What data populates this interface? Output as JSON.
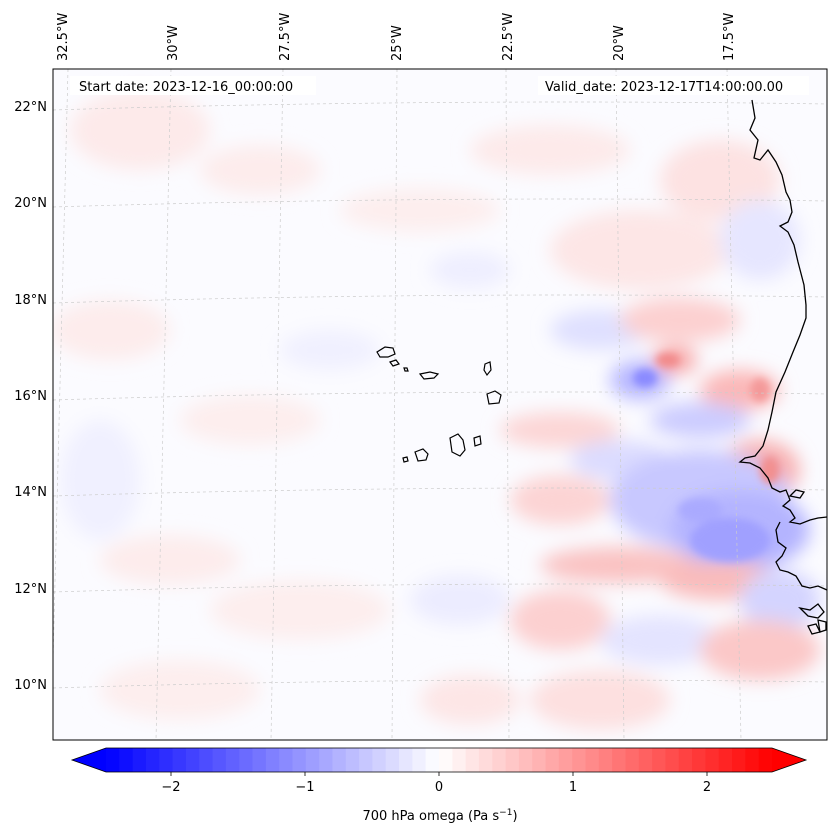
{
  "header": {
    "start_date": "Start date: 2023-12-16_00:00:00",
    "valid_date": "Valid_date: 2023-12-17T14:00:00.00"
  },
  "lon_labels": [
    "32.5°W",
    "30°W",
    "27.5°W",
    "25°W",
    "22.5°W",
    "20°W",
    "17.5°W"
  ],
  "lat_labels": [
    "22°N",
    "20°N",
    "18°N",
    "16°N",
    "14°N",
    "12°N",
    "10°N"
  ],
  "colorbar": {
    "label": "700 hPa omega (Pa s",
    "label_sup": "−1",
    "label_close": ")",
    "ticks": [
      "−2",
      "−1",
      "0",
      "1",
      "2"
    ],
    "colors": {
      "negative": "#0000ff",
      "zero": "#ffffff",
      "positive": "#ff0000"
    }
  },
  "map": {
    "land_color": "#ffffff",
    "coastline_color": "#000000",
    "grid_color": "#cccccc"
  }
}
